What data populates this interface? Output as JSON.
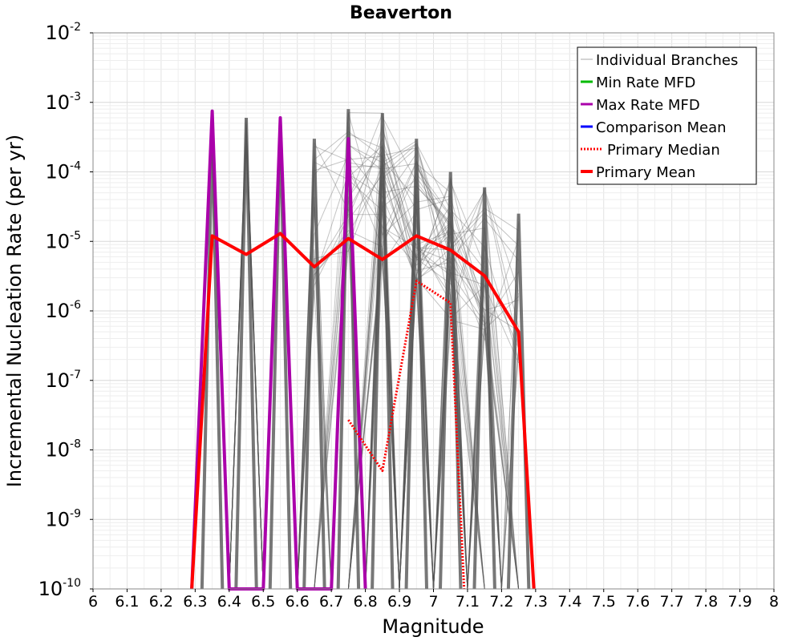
{
  "chart_data": {
    "type": "line",
    "title": "Beaverton",
    "xlabel": "Magnitude",
    "ylabel": "Incremental Nucleation Rate (per yr)",
    "xlim": [
      6,
      8
    ],
    "ylim": [
      1e-10,
      0.01
    ],
    "y_scale": "log",
    "grid": true,
    "legend_position": "top-right",
    "x_ticks": [
      "6",
      "6.1",
      "6.2",
      "6.3",
      "6.4",
      "6.5",
      "6.6",
      "6.7",
      "6.8",
      "6.9",
      "7",
      "7.1",
      "7.2",
      "7.3",
      "7.4",
      "7.5",
      "7.6",
      "7.7",
      "7.8",
      "7.9",
      "8"
    ],
    "y_tick_exponents": [
      "-10",
      "-9",
      "-8",
      "-7",
      "-6",
      "-5",
      "-4",
      "-3",
      "-2"
    ],
    "y_tick_base": "10",
    "branch_sample_count": 60,
    "legend": [
      {
        "label": "Individual Branches",
        "color": "#aaaaaa",
        "style": "thin"
      },
      {
        "label": "Min Rate MFD",
        "color": "#00bb00",
        "style": "solid"
      },
      {
        "label": "Max Rate MFD",
        "color": "#aa00aa",
        "style": "solid"
      },
      {
        "label": "Comparison Mean",
        "color": "#0000ff",
        "style": "solid"
      },
      {
        "label": "Primary Median",
        "color": "#ff0000",
        "style": "dotted"
      },
      {
        "label": "Primary Mean",
        "color": "#ff0000",
        "style": "thick"
      }
    ],
    "series": [
      {
        "name": "Max Rate MFD",
        "color": "#aa00aa",
        "x": [
          6.29,
          6.35,
          6.4,
          6.5,
          6.55,
          6.6,
          6.7,
          6.75,
          6.8
        ],
        "y": [
          1e-10,
          0.00075,
          1e-10,
          1e-10,
          0.0006,
          1e-10,
          1e-10,
          0.0003,
          1e-10
        ]
      },
      {
        "name": "Primary Median",
        "color": "#ff0000",
        "x": [
          6.75,
          6.85,
          6.95,
          7.05,
          7.09
        ],
        "y": [
          2.7e-08,
          5e-09,
          2.7e-06,
          1.3e-06,
          1e-10
        ]
      },
      {
        "name": "Primary Mean",
        "color": "#ff0000",
        "x": [
          6.29,
          6.35,
          6.45,
          6.55,
          6.65,
          6.75,
          6.85,
          6.95,
          7.05,
          7.15,
          7.25,
          7.295
        ],
        "y": [
          1e-10,
          1.2e-05,
          6.5e-06,
          1.3e-05,
          4.3e-06,
          1.1e-05,
          5.5e-06,
          1.2e-05,
          7.5e-06,
          3.2e-06,
          5e-07,
          1e-10
        ]
      }
    ]
  }
}
